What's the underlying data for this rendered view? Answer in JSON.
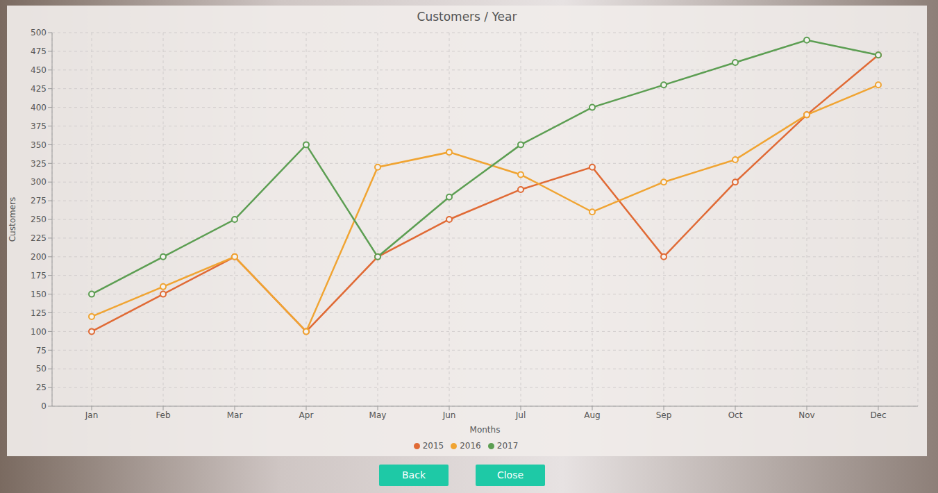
{
  "chart_data": {
    "type": "line",
    "title": "Customers / Year",
    "x_label": "Months",
    "y_label": "Customers",
    "categories": [
      "Jan",
      "Feb",
      "Mar",
      "Apr",
      "May",
      "Jun",
      "Jul",
      "Aug",
      "Sep",
      "Oct",
      "Nov",
      "Dec"
    ],
    "series": [
      {
        "name": "2015",
        "color": "#e06a35",
        "marker": "circle",
        "values": [
          100,
          150,
          200,
          100,
          200,
          250,
          290,
          320,
          200,
          300,
          390,
          470
        ]
      },
      {
        "name": "2016",
        "color": "#f0a432",
        "marker": "circle",
        "values": [
          120,
          160,
          200,
          100,
          320,
          340,
          310,
          260,
          300,
          330,
          390,
          430
        ]
      },
      {
        "name": "2017",
        "color": "#5c9e52",
        "marker": "circle",
        "values": [
          150,
          200,
          250,
          350,
          200,
          280,
          350,
          400,
          430,
          460,
          490,
          470
        ]
      }
    ],
    "ylim": [
      0,
      500
    ],
    "yticks": [
      0,
      25,
      50,
      75,
      100,
      125,
      150,
      175,
      200,
      225,
      250,
      275,
      300,
      325,
      350,
      375,
      400,
      425,
      450,
      475,
      500
    ],
    "grid": true,
    "legend": "bottom"
  },
  "buttons": [
    "Back",
    "Close"
  ]
}
